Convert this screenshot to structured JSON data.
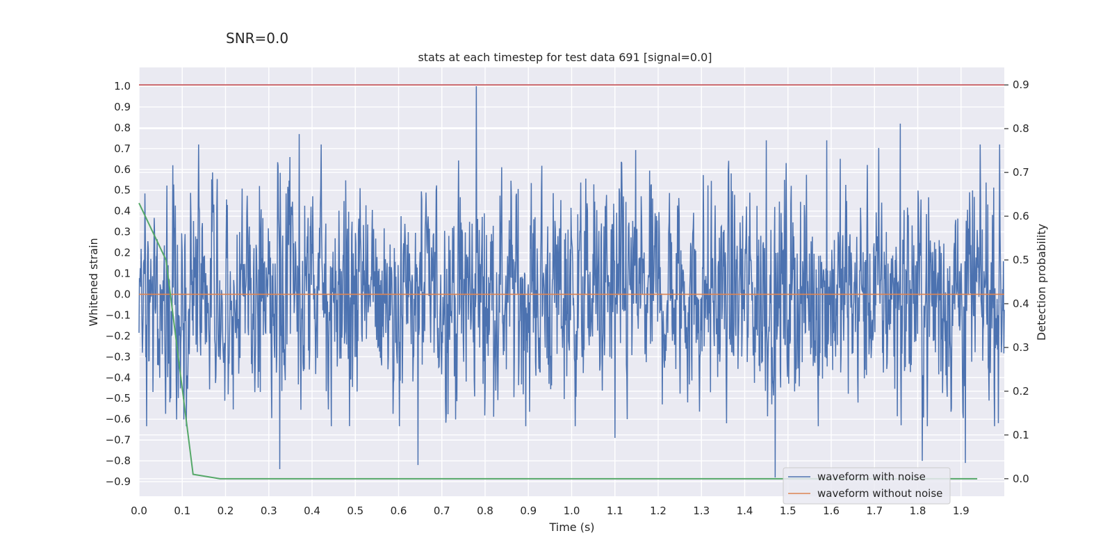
{
  "suptitle": "SNR=0.0",
  "chart_data": {
    "type": "line",
    "title": "stats at each timestep for test data 691 [signal=0.0]",
    "xlabel": "Time (s)",
    "ylabel_left": "Whitened strain",
    "ylabel_right": "Detection probability",
    "xlim": [
      0.0,
      2.0
    ],
    "ylim_left": [
      -0.97,
      1.09
    ],
    "ylim_right": [
      -0.04,
      0.94
    ],
    "x_ticks": [
      "0.0",
      "0.1",
      "0.2",
      "0.3",
      "0.4",
      "0.5",
      "0.6",
      "0.7",
      "0.8",
      "0.9",
      "1.0",
      "1.1",
      "1.2",
      "1.3",
      "1.4",
      "1.5",
      "1.6",
      "1.7",
      "1.8",
      "1.9"
    ],
    "x_tick_values": [
      0.0,
      0.1,
      0.2,
      0.3,
      0.4,
      0.5,
      0.6,
      0.7,
      0.8,
      0.9,
      1.0,
      1.1,
      1.2,
      1.3,
      1.4,
      1.5,
      1.6,
      1.7,
      1.8,
      1.9
    ],
    "y_left_ticks": [
      "1.0",
      "0.9",
      "0.8",
      "0.7",
      "0.6",
      "0.5",
      "0.4",
      "0.3",
      "0.2",
      "0.1",
      "0.0",
      "−0.1",
      "−0.2",
      "−0.3",
      "−0.4",
      "−0.5",
      "−0.6",
      "−0.7",
      "−0.8",
      "−0.9"
    ],
    "y_left_tick_values": [
      1.0,
      0.9,
      0.8,
      0.7,
      0.6,
      0.5,
      0.4,
      0.3,
      0.2,
      0.1,
      0.0,
      -0.1,
      -0.2,
      -0.3,
      -0.4,
      -0.5,
      -0.6,
      -0.7,
      -0.8,
      -0.9
    ],
    "y_right_ticks": [
      "0.9",
      "0.8",
      "0.7",
      "0.6",
      "0.5",
      "0.4",
      "0.3",
      "0.2",
      "0.1",
      "0.0"
    ],
    "y_right_tick_values": [
      0.9,
      0.8,
      0.7,
      0.6,
      0.5,
      0.4,
      0.3,
      0.2,
      0.1,
      0.0
    ],
    "noise_series": {
      "name": "waveform with noise",
      "color": "#4c72b0",
      "n_samples": 2048,
      "amplitude_range": [
        -0.88,
        1.0
      ],
      "envelope": [
        -0.5,
        0.5
      ],
      "peaks": [
        {
          "t": 0.078,
          "v": 0.62
        },
        {
          "t": 0.37,
          "v": 0.77
        },
        {
          "t": 0.78,
          "v": 1.0
        },
        {
          "t": 1.76,
          "v": 0.82
        },
        {
          "t": 1.45,
          "v": 0.74
        },
        {
          "t": 1.59,
          "v": 0.74
        },
        {
          "t": 1.47,
          "v": -0.88
        },
        {
          "t": 1.81,
          "v": -0.8
        },
        {
          "t": 1.91,
          "v": -0.81
        },
        {
          "t": 0.325,
          "v": -0.84
        },
        {
          "t": 0.645,
          "v": -0.82
        },
        {
          "t": 1.1,
          "v": -0.69
        }
      ]
    },
    "clean_series": {
      "name": "waveform without noise",
      "color": "#dd8452",
      "value": 0.0
    },
    "threshold": {
      "color": "#c44e52",
      "value": 0.9,
      "axis": "right"
    },
    "probability_series": {
      "color": "#55a868",
      "axis": "right",
      "x": [
        0.0,
        0.0625,
        0.125,
        0.1875,
        0.25,
        0.5,
        1.0,
        1.5,
        1.9375
      ],
      "y": [
        0.63,
        0.5,
        0.01,
        0.0,
        0.0,
        0.0,
        0.0,
        0.0,
        0.0
      ]
    },
    "legend": {
      "position": "bottom-right",
      "entries": [
        "waveform with noise",
        "waveform without noise"
      ]
    },
    "grid": true,
    "background": "#eaeaf2"
  }
}
